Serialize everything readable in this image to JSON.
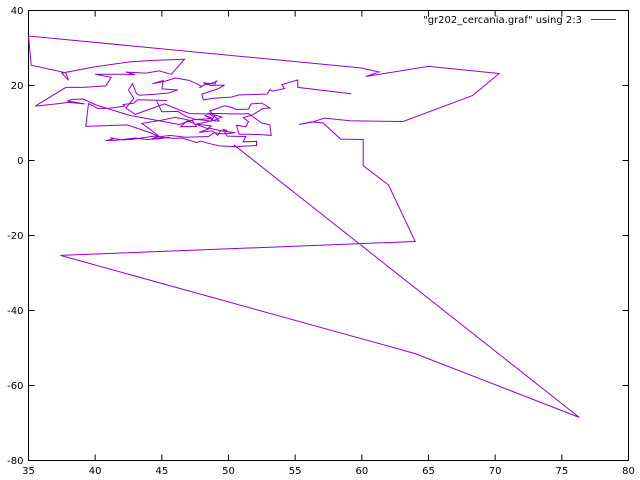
{
  "chart_data": {
    "type": "line",
    "title": "",
    "xlabel": "",
    "ylabel": "",
    "xlim": [
      35,
      80
    ],
    "ylim": [
      -80,
      40
    ],
    "x_ticks": [
      35,
      40,
      45,
      50,
      55,
      60,
      65,
      70,
      75,
      80
    ],
    "y_ticks": [
      -80,
      -60,
      -40,
      -20,
      0,
      20,
      40
    ],
    "grid": false,
    "legend_position": "top-right",
    "series": [
      {
        "name": "\"gr202_cercania.graf\" using 2:3",
        "color": "#9400d3",
        "points": [
          [
            50.4,
            4.2
          ],
          [
            76.3,
            -68.5
          ],
          [
            64.0,
            -51.5
          ],
          [
            37.4,
            -25.3
          ],
          [
            64.0,
            -21.6
          ],
          [
            62.0,
            -6.5
          ],
          [
            60.1,
            -1.4
          ],
          [
            60.1,
            5.6
          ],
          [
            58.4,
            5.7
          ],
          [
            57.1,
            10.0
          ],
          [
            56.2,
            10.3
          ],
          [
            55.3,
            9.6
          ],
          [
            56.2,
            10.2
          ],
          [
            57.2,
            11.3
          ],
          [
            59.1,
            10.6
          ],
          [
            63.1,
            10.4
          ],
          [
            68.3,
            17.3
          ],
          [
            70.3,
            23.2
          ],
          [
            65.0,
            25.1
          ],
          [
            60.3,
            22.4
          ],
          [
            61.3,
            23.6
          ],
          [
            59.9,
            24.7
          ],
          [
            35.0,
            33.2
          ],
          [
            35.2,
            25.4
          ],
          [
            37.8,
            23.4
          ],
          [
            38.0,
            21.4
          ],
          [
            37.5,
            23.3
          ],
          [
            40.0,
            25.0
          ],
          [
            42.6,
            26.3
          ],
          [
            44.3,
            26.7
          ],
          [
            46.7,
            27.0
          ],
          [
            45.7,
            23.0
          ],
          [
            44.8,
            23.9
          ],
          [
            43.8,
            23.3
          ],
          [
            42.3,
            23.6
          ],
          [
            43.0,
            22.9
          ],
          [
            42.2,
            23.0
          ],
          [
            40.0,
            23.0
          ],
          [
            41.2,
            22.2
          ],
          [
            40.8,
            19.9
          ],
          [
            39.1,
            19.5
          ],
          [
            37.8,
            19.5
          ],
          [
            35.5,
            14.5
          ],
          [
            37.1,
            15.1
          ],
          [
            38.0,
            15.5
          ],
          [
            39.2,
            15.1
          ],
          [
            37.9,
            15.9
          ],
          [
            38.3,
            16.3
          ],
          [
            39.1,
            16.4
          ],
          [
            40.0,
            14.9
          ],
          [
            42.5,
            12.1
          ],
          [
            46.3,
            9.6
          ],
          [
            47.4,
            10.9
          ],
          [
            48.8,
            11.2
          ],
          [
            48.2,
            12.1
          ],
          [
            48.9,
            10.6
          ],
          [
            49.3,
            10.5
          ],
          [
            48.6,
            13.2
          ],
          [
            49.7,
            14.6
          ],
          [
            50.1,
            14.3
          ],
          [
            50.6,
            13.6
          ],
          [
            51.5,
            13.7
          ],
          [
            51.7,
            15.1
          ],
          [
            52.5,
            15.3
          ],
          [
            53.1,
            14.0
          ],
          [
            52.6,
            13.9
          ],
          [
            51.8,
            12.2
          ],
          [
            51.1,
            11.4
          ],
          [
            51.5,
            10.4
          ],
          [
            51.3,
            9.0
          ],
          [
            50.6,
            9.4
          ],
          [
            50.8,
            7.0
          ],
          [
            51.5,
            7.0
          ],
          [
            52.4,
            6.9
          ],
          [
            53.2,
            6.7
          ],
          [
            53.1,
            9.5
          ],
          [
            52.5,
            10.0
          ],
          [
            51.5,
            12.5
          ],
          [
            50.6,
            12.4
          ],
          [
            48.5,
            12.6
          ],
          [
            48.9,
            11.6
          ],
          [
            48.7,
            10.5
          ],
          [
            47.5,
            11.0
          ],
          [
            47.0,
            11.5
          ],
          [
            46.7,
            12.0
          ],
          [
            46.2,
            13.1
          ],
          [
            45.0,
            13.0
          ],
          [
            44.6,
            16.0
          ],
          [
            45.4,
            16.0
          ],
          [
            43.2,
            16.2
          ],
          [
            42.9,
            15.3
          ],
          [
            42.1,
            14.9
          ],
          [
            42.2,
            14.5
          ],
          [
            41.0,
            13.9
          ],
          [
            40.2,
            13.9
          ],
          [
            39.5,
            15.2
          ],
          [
            39.3,
            9.1
          ],
          [
            40.9,
            9.3
          ],
          [
            42.4,
            9.5
          ],
          [
            44.2,
            7.3
          ],
          [
            44.9,
            6.1
          ],
          [
            44.2,
            8.1
          ],
          [
            43.5,
            9.9
          ],
          [
            44.9,
            10.7
          ],
          [
            46.0,
            11.5
          ],
          [
            47.3,
            10.6
          ],
          [
            47.6,
            9.1
          ],
          [
            46.4,
            9.0
          ],
          [
            46.9,
            10.6
          ],
          [
            48.5,
            8.4
          ],
          [
            47.8,
            7.5
          ],
          [
            48.8,
            7.9
          ],
          [
            49.2,
            6.7
          ],
          [
            49.4,
            7.9
          ],
          [
            49.9,
            8.0
          ],
          [
            49.6,
            8.3
          ],
          [
            49.9,
            6.5
          ],
          [
            51.3,
            6.4
          ],
          [
            51.1,
            5.0
          ],
          [
            52.1,
            5.1
          ],
          [
            52.1,
            4.0
          ],
          [
            50.5,
            3.7
          ],
          [
            49.9,
            3.8
          ],
          [
            49.3,
            3.9
          ],
          [
            48.5,
            4.6
          ],
          [
            47.9,
            5.2
          ],
          [
            47.6,
            4.8
          ],
          [
            46.5,
            6.0
          ],
          [
            45.9,
            5.9
          ],
          [
            45.2,
            6.1
          ],
          [
            44.4,
            6.5
          ],
          [
            42.7,
            5.6
          ],
          [
            42.0,
            5.5
          ],
          [
            41.2,
            6.0
          ],
          [
            41.3,
            5.7
          ],
          [
            40.8,
            5.3
          ],
          [
            41.6,
            5.4
          ],
          [
            43.0,
            6.0
          ],
          [
            43.9,
            5.6
          ],
          [
            44.8,
            5.8
          ],
          [
            45.6,
            6.2
          ],
          [
            44.2,
            5.7
          ],
          [
            44.6,
            6.2
          ],
          [
            45.6,
            6.7
          ],
          [
            46.8,
            6.2
          ],
          [
            48.5,
            6.4
          ],
          [
            48.9,
            7.4
          ],
          [
            49.6,
            7.1
          ],
          [
            50.5,
            7.4
          ],
          [
            49.3,
            8.0
          ],
          [
            48.5,
            8.7
          ],
          [
            48.7,
            9.2
          ],
          [
            48.3,
            9.4
          ],
          [
            47.6,
            9.7
          ],
          [
            48.9,
            10.7
          ],
          [
            49.5,
            11.6
          ],
          [
            48.7,
            12.4
          ],
          [
            47.1,
            12.5
          ],
          [
            46.3,
            13.5
          ],
          [
            45.2,
            15.1
          ],
          [
            43.0,
            12.3
          ],
          [
            42.3,
            14.0
          ],
          [
            42.9,
            16.6
          ],
          [
            42.5,
            18.8
          ],
          [
            42.8,
            20.5
          ],
          [
            43.1,
            17.8
          ],
          [
            43.3,
            17.4
          ],
          [
            44.6,
            17.7
          ],
          [
            45.5,
            18.0
          ],
          [
            46.2,
            18.8
          ],
          [
            45.0,
            19.1
          ],
          [
            45.1,
            21.3
          ],
          [
            44.3,
            20.5
          ],
          [
            45.2,
            21.1
          ],
          [
            46.0,
            22.0
          ],
          [
            47.0,
            21.4
          ],
          [
            47.6,
            20.5
          ],
          [
            48.0,
            19.7
          ],
          [
            47.8,
            19.4
          ],
          [
            48.2,
            20.2
          ],
          [
            48.7,
            20.5
          ],
          [
            49.1,
            21.2
          ],
          [
            49.0,
            20.4
          ],
          [
            48.1,
            20.7
          ],
          [
            48.7,
            20.0
          ],
          [
            49.7,
            20.1
          ],
          [
            49.2,
            19.1
          ],
          [
            48.0,
            17.7
          ],
          [
            48.1,
            16.2
          ],
          [
            48.9,
            16.6
          ],
          [
            50.2,
            16.9
          ],
          [
            50.8,
            17.5
          ],
          [
            51.9,
            17.6
          ],
          [
            52.9,
            17.7
          ],
          [
            53.1,
            18.9
          ],
          [
            53.3,
            18.5
          ],
          [
            54.2,
            19.2
          ],
          [
            54.0,
            20.2
          ],
          [
            55.2,
            21.5
          ],
          [
            55.2,
            19.5
          ],
          [
            59.2,
            17.8
          ],
          [
            59.2,
            17.8
          ]
        ]
      }
    ]
  }
}
